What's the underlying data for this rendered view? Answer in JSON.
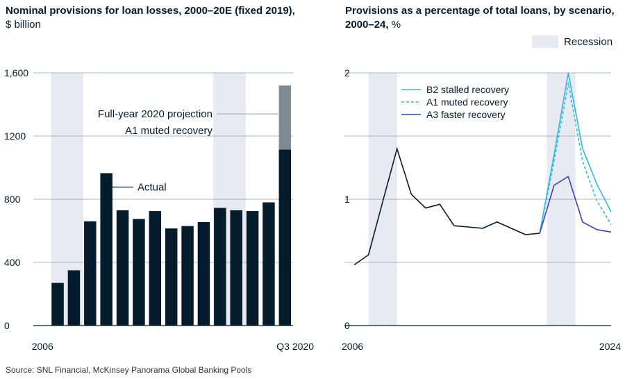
{
  "left_title_bold": "Nominal provisions for loan losses, 2000–20E (fixed 2019),",
  "left_title_unit": "$ billion",
  "right_title_bold_1": "Provisions as a percentage of total loans, by scenario,",
  "right_title_bold_2": "2000–24,",
  "right_title_unit": "%",
  "recession_label": "Recession",
  "source": "Source: SNL Financial, McKinsey Panorama Global Banking Pools",
  "colors": {
    "navy": "#051c2c",
    "projection": "#7f8a92",
    "recession": "#e7eaf0",
    "b2": "#2eb8e6",
    "a1": "#2eb8e6",
    "a3": "#3e3fbf",
    "grid": "#9aa0a6"
  },
  "chart_data": [
    {
      "type": "bar",
      "title": "Nominal provisions for loan losses, 2000–20E (fixed 2019),",
      "ylabel": "$ billion",
      "ylim": [
        0,
        1600
      ],
      "y_ticks": [
        "0",
        "400",
        "800",
        "1200",
        "1,600"
      ],
      "x_tick_labels": [
        "2006",
        "Q3 2020"
      ],
      "values": [
        270,
        350,
        660,
        965,
        730,
        675,
        725,
        615,
        630,
        655,
        745,
        730,
        725,
        780,
        1115
      ],
      "projection_total": 1520,
      "recession_shading_bars": [
        [
          1,
          2
        ],
        [
          11,
          12
        ]
      ],
      "annotations": {
        "actual": "Actual",
        "projection_line1": "Full-year 2020 projection",
        "projection_line2": "A1 muted recovery"
      }
    },
    {
      "type": "line",
      "title": "Provisions as a percentage of total loans, by scenario, 2000–24, %",
      "ylim": [
        0,
        2
      ],
      "y_ticks": [
        "0",
        "1",
        "2"
      ],
      "x_tick_labels": [
        "2006",
        "2024"
      ],
      "x": [
        2006,
        2007,
        2008,
        2009,
        2010,
        2011,
        2012,
        2013,
        2014,
        2015,
        2016,
        2017,
        2018,
        2019,
        2020,
        2021,
        2022,
        2023,
        2024
      ],
      "recessions": [
        [
          2007,
          2009
        ],
        [
          2019.5,
          2021.5
        ]
      ],
      "common": [
        0.48,
        0.56,
        0.98,
        1.4,
        1.04,
        0.93,
        0.96,
        0.79,
        0.78,
        0.77,
        0.82,
        0.77,
        0.72,
        0.73
      ],
      "series": [
        {
          "name": "B2 stalled recovery",
          "style": "solid",
          "tail": [
            1.35,
            2.0,
            1.4,
            1.12,
            0.9
          ]
        },
        {
          "name": "A1  muted recovery",
          "style": "dashed",
          "tail": [
            1.3,
            1.92,
            1.3,
            0.99,
            0.8
          ]
        },
        {
          "name": "A3 faster recovery",
          "style": "solid",
          "tail": [
            1.11,
            1.18,
            0.82,
            0.76,
            0.74
          ]
        }
      ]
    }
  ]
}
